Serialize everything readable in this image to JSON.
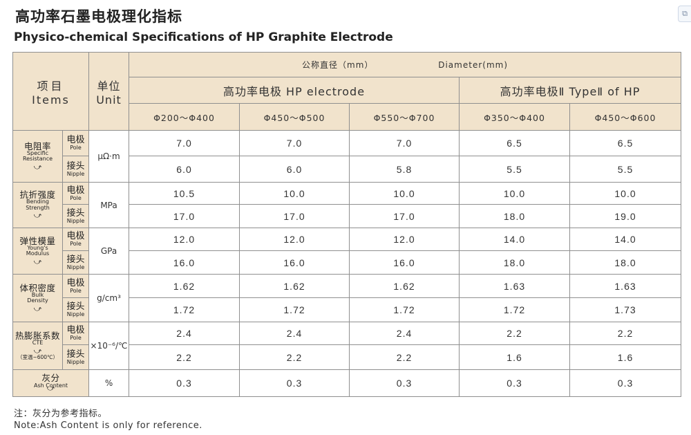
{
  "title_cn": "高功率石墨电极理化指标",
  "title_en": "Physico-chemical Specifications of HP Graphite Electrode",
  "header": {
    "items_cn": "项目",
    "items_en": "Items",
    "unit_cn": "单位",
    "unit_en": "Unit",
    "diameter_cn": "公称直径（mm）",
    "diameter_en": "Diameter(mm)",
    "group1": "高功率电极 HP electrode",
    "group2": "高功率电极Ⅱ TypeⅡ of HP",
    "sizes": [
      "Φ200～Φ400",
      "Φ450～Φ500",
      "Φ550～Φ700",
      "Φ350～Φ400",
      "Φ450～Φ600"
    ]
  },
  "sub_labels": {
    "pole_cn": "电极",
    "pole_en": "Pole",
    "nipple_cn": "接头",
    "nipple_en": "Nipple"
  },
  "rows": [
    {
      "prop_cn": "电阻率",
      "prop_en1": "Specific",
      "prop_en2": "Resistance",
      "unit": "μΩ·m",
      "pole": [
        "7.0",
        "7.0",
        "7.0",
        "6.5",
        "6.5"
      ],
      "nipple": [
        "6.0",
        "6.0",
        "5.8",
        "5.5",
        "5.5"
      ]
    },
    {
      "prop_cn": "抗折强度",
      "prop_en1": "Bending",
      "prop_en2": "Strength",
      "unit": "MPa",
      "pole": [
        "10.5",
        "10.0",
        "10.0",
        "10.0",
        "10.0"
      ],
      "nipple": [
        "17.0",
        "17.0",
        "17.0",
        "18.0",
        "19.0"
      ]
    },
    {
      "prop_cn": "弹性模量",
      "prop_en1": "Young's",
      "prop_en2": "Modulus",
      "unit": "GPa",
      "pole": [
        "12.0",
        "12.0",
        "12.0",
        "14.0",
        "14.0"
      ],
      "nipple": [
        "16.0",
        "16.0",
        "16.0",
        "18.0",
        "18.0"
      ]
    },
    {
      "prop_cn": "体积密度",
      "prop_en1": "Bulk",
      "prop_en2": "Density",
      "unit": "g/cm³",
      "pole": [
        "1.62",
        "1.62",
        "1.62",
        "1.63",
        "1.63"
      ],
      "nipple": [
        "1.72",
        "1.72",
        "1.72",
        "1.72",
        "1.73"
      ]
    },
    {
      "prop_cn": "热膨胀系数",
      "prop_en1": "CTE",
      "prop_en2": "",
      "prop_extra": "（室温~600℃）",
      "unit": "×10⁻⁶/℃",
      "pole": [
        "2.4",
        "2.4",
        "2.4",
        "2.2",
        "2.2"
      ],
      "nipple": [
        "2.2",
        "2.2",
        "2.2",
        "1.6",
        "1.6"
      ]
    }
  ],
  "ash": {
    "prop_cn": "灰分",
    "prop_en": "Ash Content",
    "unit": "%",
    "values": [
      "0.3",
      "0.3",
      "0.3",
      "0.3",
      "0.3"
    ]
  },
  "arrow_glyph": "⤻",
  "note_cn": "注：灰分为参考指标。",
  "note_en": "Note:Ash Content is only for reference."
}
